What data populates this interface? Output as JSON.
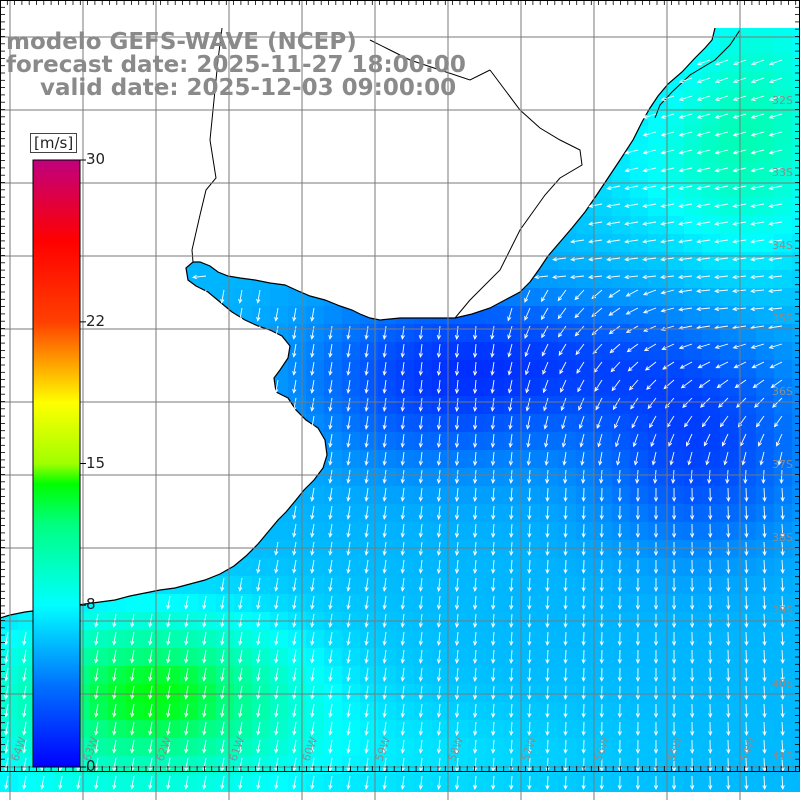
{
  "title": {
    "line1": "modelo GEFS-WAVE (NCEP)",
    "line2": "forecast date: 2025-11-27 18:00:00",
    "line3": "valid date: 2025-12-03 09:00:00"
  },
  "colorbar": {
    "unit": "[m/s]",
    "min": 0,
    "max": 30,
    "ticks": [
      {
        "value": 30,
        "label": "30"
      },
      {
        "value": 22,
        "label": "22"
      },
      {
        "value": 15,
        "label": "15"
      },
      {
        "value": 8,
        "label": "8"
      },
      {
        "value": 0,
        "label": "0"
      }
    ],
    "colors": [
      "#0000ff",
      "#00a0ff",
      "#00ffff",
      "#00ff00",
      "#ffff00",
      "#ff8000",
      "#ff0000",
      "#c0007f"
    ]
  },
  "map": {
    "lon_labels": [
      "64W",
      "63W",
      "62W",
      "61W",
      "60W",
      "59W",
      "58W",
      "57W",
      "56W",
      "55W",
      "54W"
    ],
    "lat_labels": [
      "32S",
      "33S",
      "34S",
      "35S",
      "36S",
      "37S",
      "38S",
      "39S",
      "40S",
      "41S"
    ],
    "grid": true,
    "colors": {
      "land": "#ffffff",
      "coast": "#000000",
      "grid": "#7a7a7a",
      "arrows": "#ffffff"
    }
  }
}
